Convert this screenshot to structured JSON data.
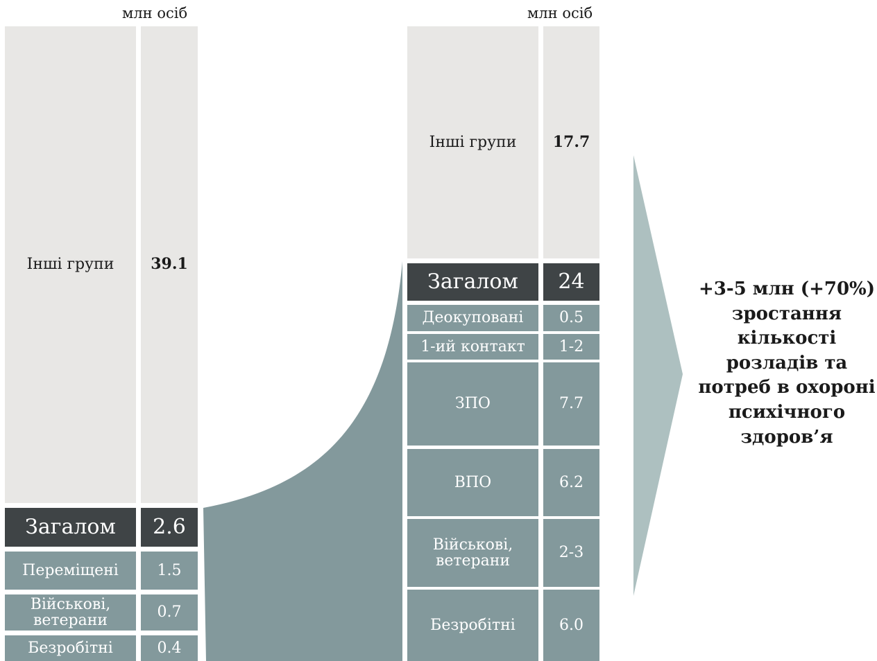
{
  "unit_label": "млн осіб",
  "left_panel": {
    "other": {
      "label": "Інші групи",
      "value": "39.1"
    },
    "total": {
      "label": "Загалом",
      "value": "2.6"
    },
    "rows": [
      {
        "label": "Переміщені",
        "value": "1.5"
      },
      {
        "label": "Військові, ветерани",
        "value": "0.7"
      },
      {
        "label": "Безробітні",
        "value": "0.4"
      }
    ]
  },
  "right_panel": {
    "other": {
      "label": "Інші групи",
      "value": "17.7"
    },
    "total": {
      "label": "Загалом",
      "value": "24"
    },
    "rows": [
      {
        "label": "Деокуповані",
        "value": "0.5"
      },
      {
        "label": "1-ий контакт",
        "value": "1-2"
      },
      {
        "label": "ЗПО",
        "value": "7.7"
      },
      {
        "label": "ВПО",
        "value": "6.2"
      },
      {
        "label": "Військові, ветерани",
        "value": "2-3"
      },
      {
        "label": "Безробітні",
        "value": "6.0"
      }
    ]
  },
  "callout_lines": [
    "+3-5 млн (+70%)",
    "зростання",
    "кількості",
    "розладів та",
    "потреб в охороні",
    "психічного",
    "здоров’я"
  ],
  "colors": {
    "light": "#e8e7e5",
    "dark": "#3f4446",
    "teal": "#83999c",
    "arrow": "#adc0c0"
  }
}
